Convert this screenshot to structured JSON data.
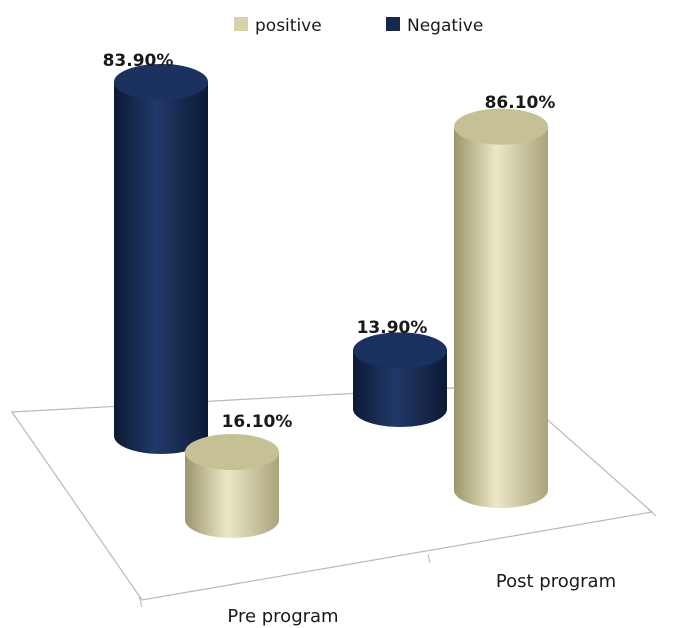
{
  "chart_data": {
    "type": "bar",
    "style": "3d-cylinder",
    "categories": [
      "Pre program",
      "Post program"
    ],
    "series": [
      {
        "name": "positive",
        "values": [
          16.1,
          86.1
        ],
        "labels": [
          "16.10%",
          "86.10%"
        ]
      },
      {
        "name": "Negative",
        "values": [
          83.9,
          13.9
        ],
        "labels": [
          "83.90%",
          "13.90%"
        ]
      }
    ],
    "legend_position": "top",
    "grid": false,
    "ylim": [
      0,
      100
    ],
    "unit": "%"
  },
  "colors": {
    "positive": "#d6d1a8",
    "negative": "#14294d",
    "floor_stroke": "#b8b8b8",
    "text": "#1a1a1a"
  }
}
